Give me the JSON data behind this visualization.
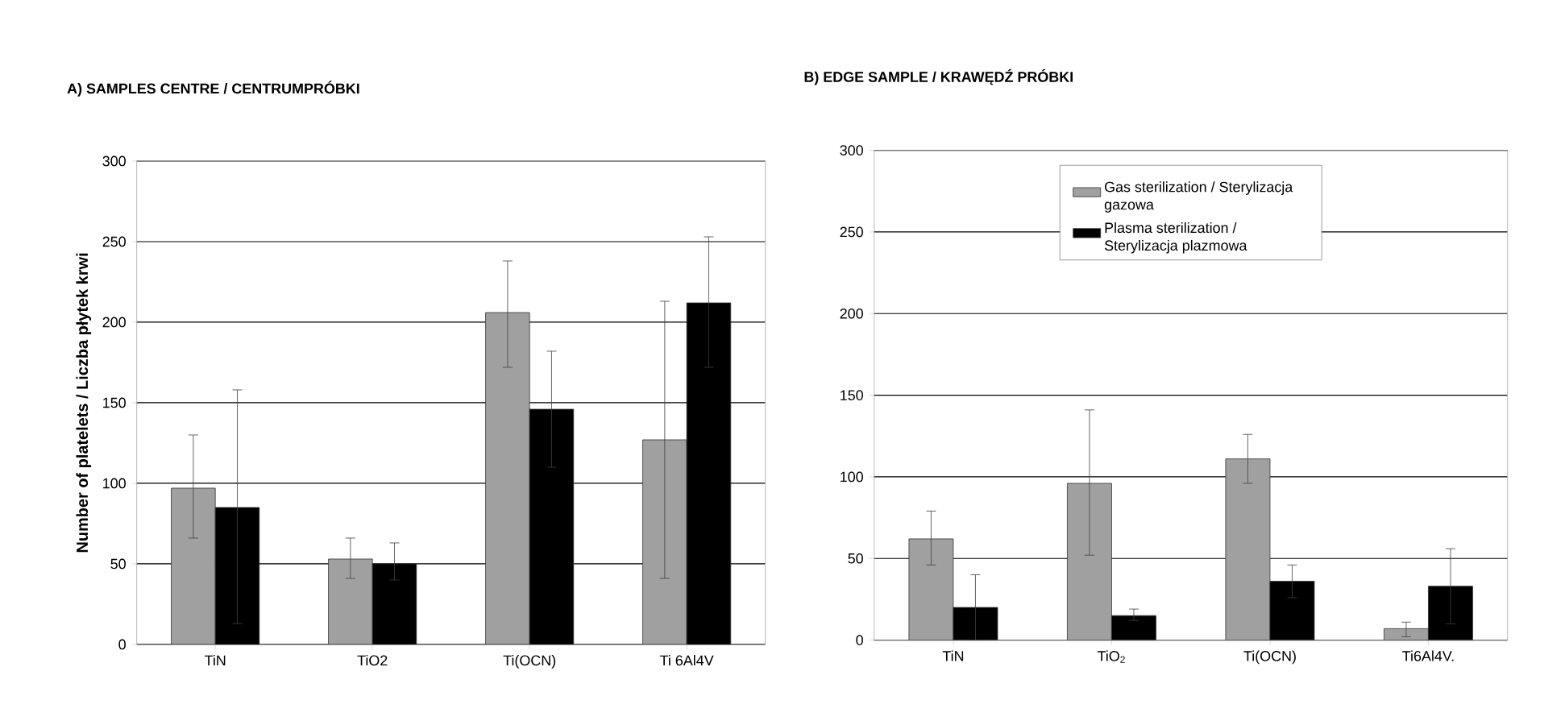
{
  "chart_data": [
    {
      "type": "bar",
      "title": "A) SAMPLES CENTRE / CENTRUMPRÓBKI",
      "ylabel": "Number of platelets / Liczba płytek krwi",
      "categories": [
        "TiN",
        "TiO2",
        "Ti(OCN)",
        "Ti 6Al4V"
      ],
      "series": [
        {
          "color": "#a0a0a0",
          "values": [
            97,
            53,
            206,
            127
          ],
          "errors": [
            [
              66,
              130
            ],
            [
              41,
              66
            ],
            [
              172,
              238
            ],
            [
              41,
              213
            ]
          ]
        },
        {
          "color": "#000000",
          "values": [
            85,
            50,
            146,
            212
          ],
          "errors": [
            [
              13,
              158
            ],
            [
              40,
              63
            ],
            [
              110,
              182
            ],
            [
              172,
              253
            ]
          ]
        }
      ],
      "ylim": [
        0,
        300
      ],
      "yticks": [
        0,
        50,
        100,
        150,
        200,
        250,
        300
      ],
      "grid": "y",
      "legend": false
    },
    {
      "type": "bar",
      "title": "B) EDGE SAMPLE / KRAWĘDŹ PRÓBKI",
      "categories": [
        "TiN",
        "TiO$_{2}$",
        "Ti(OCN)",
        "Ti6Al4V."
      ],
      "series": [
        {
          "name": "Gas sterilization / Sterylizacja gazowa",
          "color": "#a0a0a0",
          "values": [
            62,
            96,
            111,
            7
          ],
          "errors": [
            [
              46,
              79
            ],
            [
              52,
              141
            ],
            [
              96,
              126
            ],
            [
              2,
              11
            ]
          ]
        },
        {
          "name": "Plasma sterilization / Sterylizacja plazmowa",
          "color": "#000000",
          "values": [
            20,
            15,
            36,
            33
          ],
          "errors": [
            [
              0,
              40
            ],
            [
              12,
              19
            ],
            [
              26,
              46
            ],
            [
              10,
              56
            ]
          ]
        }
      ],
      "ylim": [
        0,
        300
      ],
      "yticks": [
        0,
        50,
        100,
        150,
        200,
        250,
        300
      ],
      "grid": "y",
      "legend": "top"
    }
  ]
}
